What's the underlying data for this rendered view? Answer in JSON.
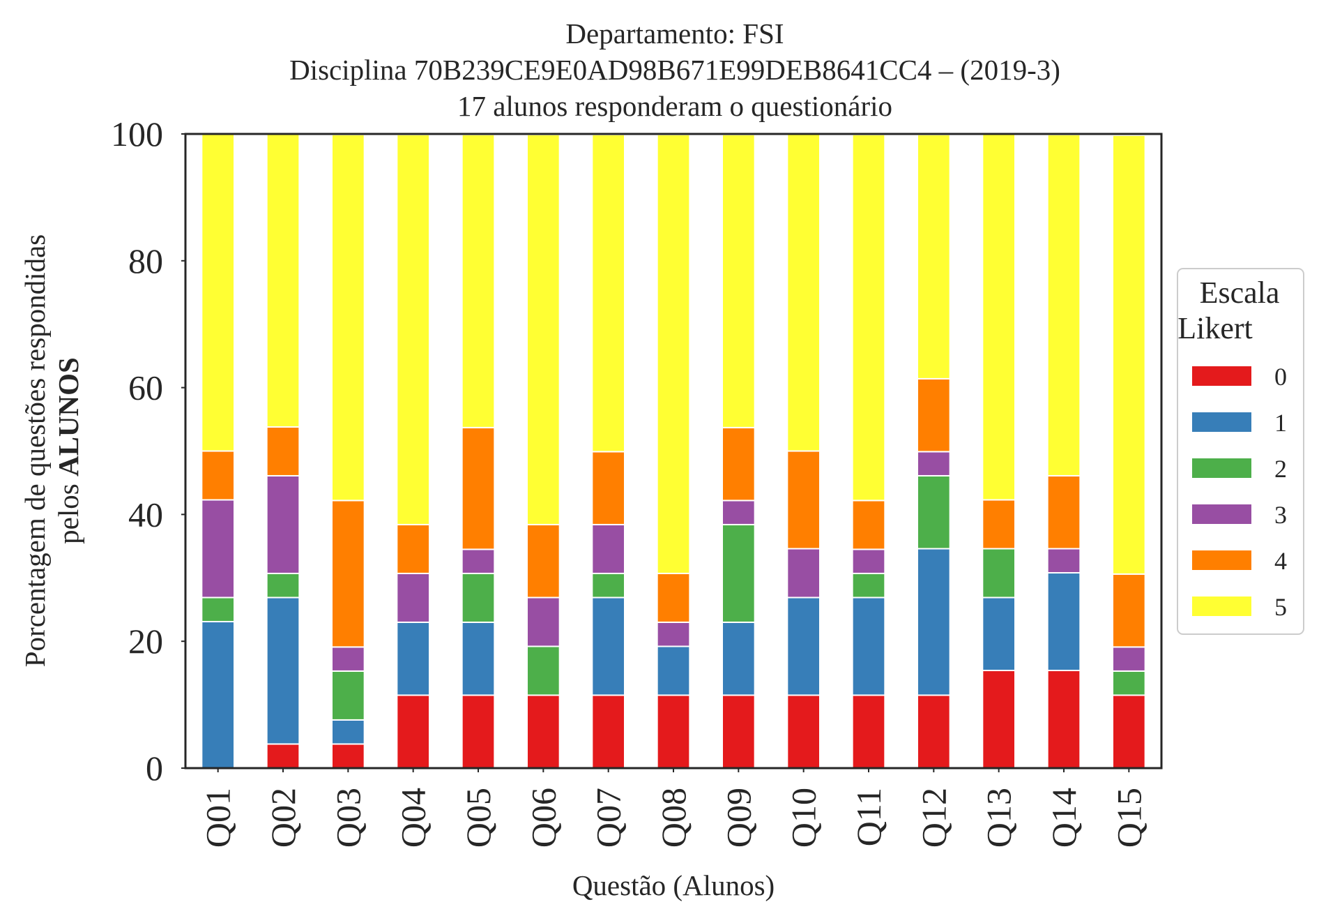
{
  "chart_data": {
    "type": "bar",
    "stacked": true,
    "title": [
      "Departamento: FSI",
      "Disciplina 70B239CE9E0AD98B671E99DEB8641CC4 – (2019-3)",
      "17 alunos responderam o questionário"
    ],
    "xlabel": "Questão (Alunos)",
    "ylabel_line1": "Porcentagem de questões respondidas",
    "ylabel_line2_prefix": "pelos ",
    "ylabel_line2_bold": "ALUNOS",
    "ylim": [
      0,
      100
    ],
    "yticks": [
      "0",
      "20",
      "40",
      "60",
      "80",
      "100"
    ],
    "grid": false,
    "legend": {
      "title_line1": "Escala",
      "title_line2": "Likert",
      "placement": "center-right outside"
    },
    "categories": [
      "Q01",
      "Q02",
      "Q03",
      "Q04",
      "Q05",
      "Q06",
      "Q07",
      "Q08",
      "Q09",
      "Q10",
      "Q11",
      "Q12",
      "Q13",
      "Q14",
      "Q15"
    ],
    "series": [
      {
        "name": "0",
        "color": "#e41a1c",
        "values": [
          0,
          3.8,
          3.8,
          11.5,
          11.5,
          11.5,
          11.5,
          11.5,
          11.5,
          11.5,
          11.5,
          11.5,
          15.4,
          15.4,
          11.5
        ]
      },
      {
        "name": "1",
        "color": "#377eb8",
        "values": [
          23.1,
          23.1,
          3.8,
          11.5,
          11.5,
          0,
          15.4,
          7.7,
          11.5,
          15.4,
          15.4,
          23.1,
          11.5,
          15.4,
          0
        ]
      },
      {
        "name": "2",
        "color": "#4daf4a",
        "values": [
          3.8,
          3.8,
          7.7,
          0,
          7.7,
          7.7,
          3.8,
          0,
          15.4,
          0,
          3.8,
          11.5,
          7.7,
          0,
          3.8
        ]
      },
      {
        "name": "3",
        "color": "#984ea3",
        "values": [
          15.4,
          15.4,
          3.8,
          7.7,
          3.8,
          7.7,
          7.7,
          3.8,
          3.8,
          7.7,
          3.8,
          3.8,
          0,
          3.8,
          3.8
        ]
      },
      {
        "name": "4",
        "color": "#ff7f00",
        "values": [
          7.7,
          7.7,
          23.1,
          7.7,
          19.2,
          11.5,
          11.5,
          7.7,
          11.5,
          15.4,
          7.7,
          11.5,
          7.7,
          11.5,
          11.5
        ]
      },
      {
        "name": "5",
        "color": "#ffff33",
        "values": [
          50.0,
          46.2,
          57.7,
          61.5,
          46.2,
          61.5,
          50.0,
          69.2,
          46.2,
          50.0,
          57.7,
          38.5,
          57.7,
          53.8,
          69.2
        ]
      }
    ]
  }
}
